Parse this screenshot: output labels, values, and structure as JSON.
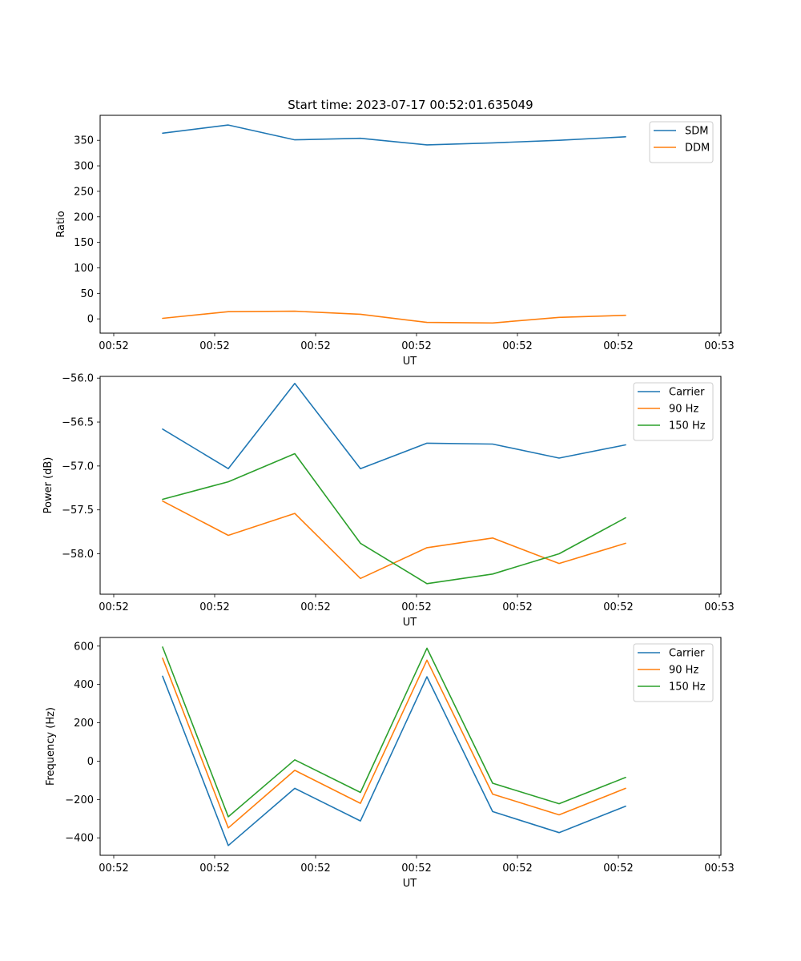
{
  "chart_data": [
    {
      "type": "line",
      "title": "Start time: 2023-07-17 00:52:01.635049",
      "xlabel": "UT",
      "ylabel": "Ratio",
      "xtick_labels": [
        "00:52",
        "00:52",
        "00:52",
        "00:52",
        "00:52",
        "00:52",
        "00:53"
      ],
      "yticks": [
        0,
        50,
        100,
        150,
        200,
        250,
        300,
        350
      ],
      "ytick_labels": [
        "0",
        "50",
        "100",
        "150",
        "200",
        "250",
        "300",
        "350"
      ],
      "ylim": [
        -28,
        399
      ],
      "legend_position": "top-right",
      "series": [
        {
          "name": "SDM",
          "color": "#1f77b4",
          "values": [
            364,
            380,
            351,
            354,
            341,
            345,
            350,
            357
          ]
        },
        {
          "name": "DDM",
          "color": "#ff7f0e",
          "values": [
            1,
            14,
            15,
            9,
            -7,
            -8,
            3,
            7
          ]
        }
      ]
    },
    {
      "type": "line",
      "title": "",
      "xlabel": "UT",
      "ylabel": "Power (dB)",
      "xtick_labels": [
        "00:52",
        "00:52",
        "00:52",
        "00:52",
        "00:52",
        "00:52",
        "00:53"
      ],
      "yticks": [
        -58.0,
        -57.5,
        -57.0,
        -56.5,
        -56.0
      ],
      "ytick_labels": [
        "−58.0",
        "−57.5",
        "−57.0",
        "−56.5",
        "−56.0"
      ],
      "ylim": [
        -58.46,
        -55.98
      ],
      "legend_position": "top-right",
      "series": [
        {
          "name": "Carrier",
          "color": "#1f77b4",
          "values": [
            -56.58,
            -57.03,
            -56.06,
            -57.03,
            -56.74,
            -56.75,
            -56.91,
            -56.76
          ]
        },
        {
          "name": "90 Hz",
          "color": "#ff7f0e",
          "values": [
            -57.4,
            -57.79,
            -57.54,
            -58.28,
            -57.93,
            -57.82,
            -58.11,
            -57.88
          ]
        },
        {
          "name": "150 Hz",
          "color": "#2ca02c",
          "values": [
            -57.38,
            -57.18,
            -56.86,
            -57.88,
            -58.34,
            -58.23,
            -58.0,
            -57.59
          ]
        }
      ]
    },
    {
      "type": "line",
      "title": "",
      "xlabel": "UT",
      "ylabel": "Frequency (Hz)",
      "xtick_labels": [
        "00:52",
        "00:52",
        "00:52",
        "00:52",
        "00:52",
        "00:52",
        "00:53"
      ],
      "yticks": [
        -400,
        -200,
        0,
        200,
        400,
        600
      ],
      "ytick_labels": [
        "−400",
        "−200",
        "0",
        "200",
        "400",
        "600"
      ],
      "ylim": [
        -491,
        645
      ],
      "legend_position": "top-right",
      "series": [
        {
          "name": "Carrier",
          "color": "#1f77b4",
          "values": [
            443,
            -440,
            -142,
            -312,
            440,
            -263,
            -373,
            -235
          ]
        },
        {
          "name": "90 Hz",
          "color": "#ff7f0e",
          "values": [
            537,
            -348,
            -48,
            -220,
            527,
            -172,
            -280,
            -142
          ]
        },
        {
          "name": "150 Hz",
          "color": "#2ca02c",
          "values": [
            595,
            -290,
            7,
            -163,
            589,
            -115,
            -222,
            -85
          ]
        }
      ]
    }
  ]
}
